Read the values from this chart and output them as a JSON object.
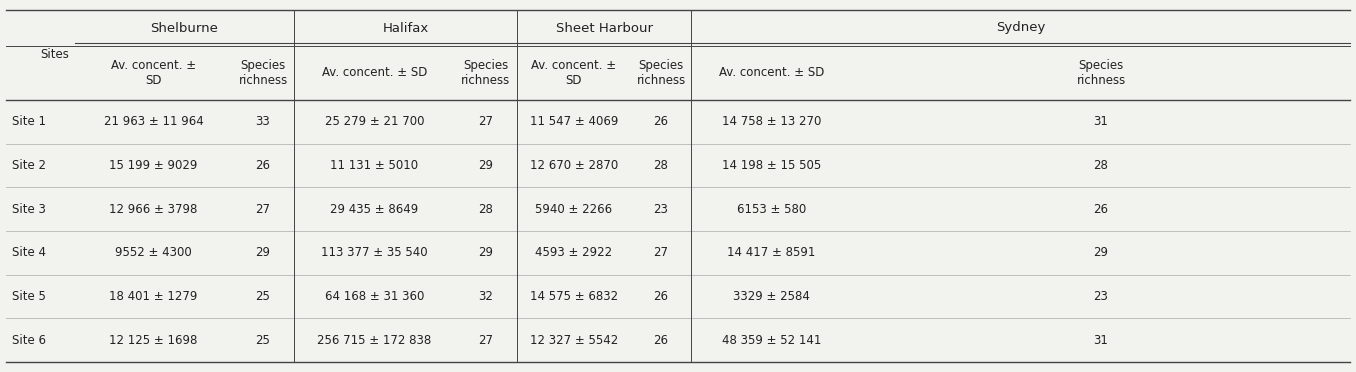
{
  "ports": [
    "Shelburne",
    "Halifax",
    "Sheet Harbour",
    "Sydney"
  ],
  "row_labels": [
    "Site 1",
    "Site 2",
    "Site 3",
    "Site 4",
    "Site 5",
    "Site 6"
  ],
  "data": [
    [
      "21 963 ± 11 964",
      "33",
      "25 279 ± 21 700",
      "27",
      "11 547 ± 4069",
      "26",
      "14 758 ± 13 270",
      "31"
    ],
    [
      "15 199 ± 9029",
      "26",
      "11 131 ± 5010",
      "29",
      "12 670 ± 2870",
      "28",
      "14 198 ± 15 505",
      "28"
    ],
    [
      "12 966 ± 3798",
      "27",
      "29 435 ± 8649",
      "28",
      "5940 ± 2266",
      "23",
      "6153 ± 580",
      "26"
    ],
    [
      "9552 ± 4300",
      "29",
      "113 377 ± 35 540",
      "29",
      "4593 ± 2922",
      "27",
      "14 417 ± 8591",
      "29"
    ],
    [
      "18 401 ± 1279",
      "25",
      "64 168 ± 31 360",
      "32",
      "14 575 ± 6832",
      "26",
      "3329 ± 2584",
      "23"
    ],
    [
      "12 125 ± 1698",
      "25",
      "256 715 ± 172 838",
      "27",
      "12 327 ± 5542",
      "26",
      "48 359 ± 52 141",
      "31"
    ]
  ],
  "bg_color": "#f2f2ee",
  "line_color": "#444444",
  "thin_line_color": "#aaaaaa",
  "font_size": 8.5,
  "header_font_size": 8.5,
  "port_font_size": 9.5,
  "col_sub_labels": [
    "Av. concent. ±\nSD",
    "Species\nrichness",
    "Av. concent. ± SD",
    "Species\nrichness",
    "Av. concent. ±\nSD",
    "Species\nrichness",
    "Av. concent. ± SD",
    "Species\nrichness"
  ],
  "port_spans_data_cols": [
    [
      0,
      1
    ],
    [
      2,
      3
    ],
    [
      4,
      5
    ],
    [
      6,
      7
    ]
  ]
}
